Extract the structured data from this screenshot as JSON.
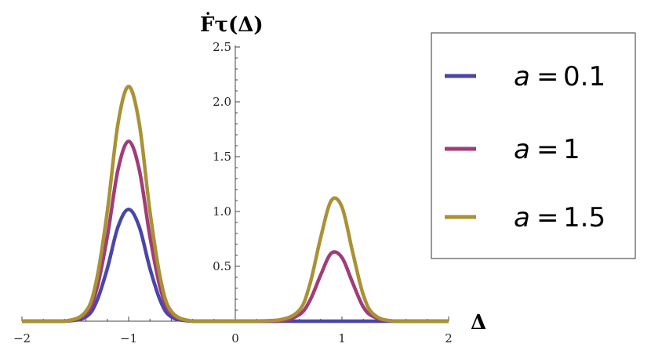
{
  "chart_data": {
    "type": "line",
    "xlabel": "Δ",
    "ylabel": "Ḟτ(Δ)",
    "xlim": [
      -2,
      2
    ],
    "ylim": [
      0,
      2.5
    ],
    "xticks": [
      -2,
      -1,
      0,
      1,
      2
    ],
    "xtick_labels": [
      "−2",
      "−1",
      "0",
      "1",
      "2"
    ],
    "yticks": [
      0.5,
      1.0,
      1.5,
      2.0,
      2.5
    ],
    "ytick_labels": [
      "0.5",
      "1.0",
      "1.5",
      "2.0",
      "2.5"
    ],
    "grid": false,
    "legend_position": "top-right",
    "series": [
      {
        "name": "a = 0.1",
        "legend_var": "a",
        "legend_eq": "=",
        "legend_val": "0.1",
        "color": "#4a46a8",
        "x": [
          -2.0,
          -1.6,
          -1.4,
          -1.3,
          -1.2,
          -1.1,
          -1.0,
          -0.9,
          -0.8,
          -0.7,
          -0.6,
          -0.4,
          0.0,
          0.6,
          0.9,
          1.2,
          2.0
        ],
        "y": [
          0.0,
          0.0,
          0.04,
          0.18,
          0.48,
          0.86,
          1.02,
          0.86,
          0.48,
          0.18,
          0.04,
          0.0,
          0.0,
          0.0,
          0.0,
          0.0,
          0.0
        ]
      },
      {
        "name": "a = 1",
        "legend_var": "a",
        "legend_eq": "=",
        "legend_val": "1",
        "color": "#a03d78",
        "x": [
          -2.0,
          -1.6,
          -1.4,
          -1.3,
          -1.2,
          -1.1,
          -1.0,
          -0.9,
          -0.8,
          -0.7,
          -0.6,
          -0.4,
          0.0,
          0.4,
          0.6,
          0.7,
          0.8,
          0.9,
          1.0,
          1.1,
          1.2,
          1.3,
          1.5,
          2.0
        ],
        "y": [
          0.0,
          0.0,
          0.07,
          0.29,
          0.77,
          1.38,
          1.64,
          1.38,
          0.77,
          0.29,
          0.07,
          0.0,
          0.0,
          0.0,
          0.06,
          0.19,
          0.42,
          0.62,
          0.58,
          0.35,
          0.13,
          0.04,
          0.0,
          0.0
        ]
      },
      {
        "name": "a = 1.5",
        "legend_var": "a",
        "legend_eq": "=",
        "legend_val": "1.5",
        "color": "#a99235",
        "x": [
          -2.0,
          -1.6,
          -1.4,
          -1.3,
          -1.2,
          -1.1,
          -1.0,
          -0.9,
          -0.8,
          -0.7,
          -0.6,
          -0.4,
          0.0,
          0.4,
          0.6,
          0.7,
          0.8,
          0.9,
          1.0,
          1.1,
          1.2,
          1.3,
          1.5,
          2.0
        ],
        "y": [
          0.0,
          0.0,
          0.09,
          0.38,
          1.0,
          1.8,
          2.14,
          1.8,
          1.0,
          0.38,
          0.09,
          0.0,
          0.0,
          0.01,
          0.1,
          0.34,
          0.76,
          1.1,
          1.04,
          0.63,
          0.24,
          0.06,
          0.0,
          0.0
        ]
      }
    ]
  }
}
